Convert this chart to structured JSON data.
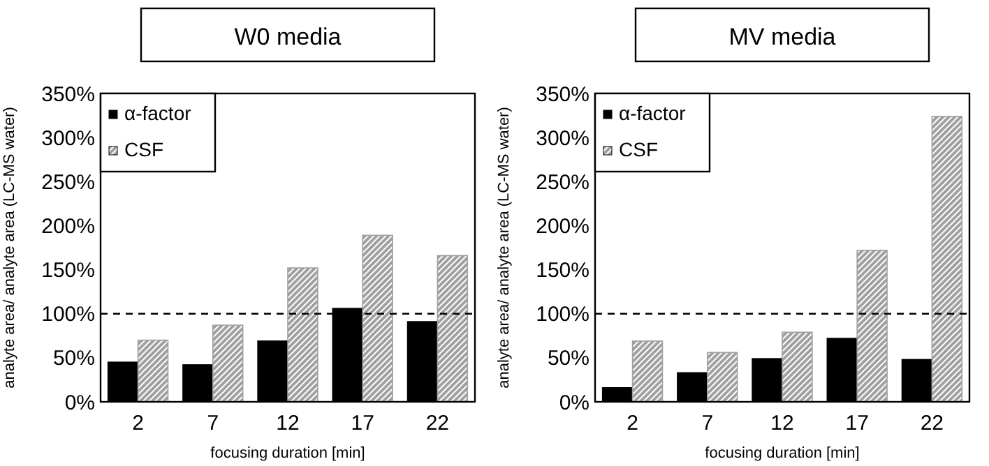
{
  "chart_data": [
    {
      "type": "bar",
      "title": "W0 media",
      "xlabel": "focusing duration [min]",
      "ylabel": "analyte area/ analyte area (LC-MS water)",
      "categories": [
        "2",
        "7",
        "12",
        "17",
        "22"
      ],
      "series": [
        {
          "name": "α-factor",
          "color": "#000000",
          "values": [
            45,
            42,
            69,
            106,
            91
          ]
        },
        {
          "name": "CSF",
          "color": "#a0a0a0",
          "values": [
            70,
            87,
            152,
            189,
            166
          ]
        }
      ],
      "ylim": [
        0,
        350
      ],
      "yticks": [
        {
          "value": 0,
          "label": "0%"
        },
        {
          "value": 50,
          "label": "50%"
        },
        {
          "value": 100,
          "label": "100%"
        },
        {
          "value": 150,
          "label": "150%"
        },
        {
          "value": 200,
          "label": "200%"
        },
        {
          "value": 250,
          "label": "250%"
        },
        {
          "value": 300,
          "label": "300%"
        },
        {
          "value": 350,
          "label": "350%"
        }
      ],
      "ref_lines": [
        {
          "axis": "y",
          "value": 100,
          "line_style": "dashed",
          "color": "#000000"
        }
      ],
      "grid": false,
      "legend": "top left"
    },
    {
      "type": "bar",
      "title": "MV media",
      "xlabel": "focusing duration [min]",
      "ylabel": "analyte area/ analyte area (LC-MS water)",
      "categories": [
        "2",
        "7",
        "12",
        "17",
        "22"
      ],
      "series": [
        {
          "name": "α-factor",
          "color": "#000000",
          "values": [
            16,
            33,
            49,
            72,
            48
          ]
        },
        {
          "name": "CSF",
          "color": "#a0a0a0",
          "values": [
            69,
            56,
            79,
            172,
            324
          ]
        }
      ],
      "ylim": [
        0,
        350
      ],
      "yticks": [
        {
          "value": 0,
          "label": "0%"
        },
        {
          "value": 50,
          "label": "50%"
        },
        {
          "value": 100,
          "label": "100%"
        },
        {
          "value": 150,
          "label": "150%"
        },
        {
          "value": 200,
          "label": "200%"
        },
        {
          "value": 250,
          "label": "250%"
        },
        {
          "value": 300,
          "label": "300%"
        },
        {
          "value": 350,
          "label": "350%"
        }
      ],
      "ref_lines": [
        {
          "axis": "y",
          "value": 100,
          "line_style": "dashed",
          "color": "#000000"
        }
      ],
      "grid": false,
      "legend": "top left"
    }
  ]
}
